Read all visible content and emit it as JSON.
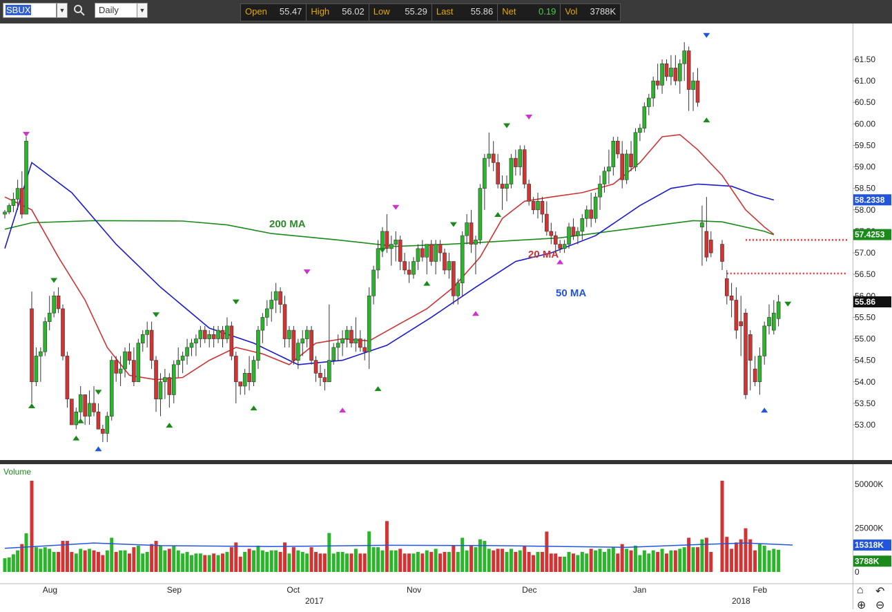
{
  "toolbar": {
    "symbol": "SBUX",
    "period": "Daily",
    "quote": {
      "open_label": "Open",
      "open": "55.47",
      "high_label": "High",
      "high": "56.02",
      "low_label": "Low",
      "low": "55.29",
      "last_label": "Last",
      "last": "55.86",
      "net_label": "Net",
      "net": "0.19",
      "vol_label": "Vol",
      "vol": "3788K"
    },
    "icons": [
      "search-icon",
      "dropdown-arrow-icon"
    ]
  },
  "chart_data": {
    "type": "candlestick",
    "price_axis": {
      "ticks": [
        "53.00",
        "53.50",
        "54.00",
        "54.50",
        "55.00",
        "55.50",
        "56.00",
        "56.50",
        "57.00",
        "57.50",
        "58.00",
        "58.50",
        "59.00",
        "59.50",
        "60.00",
        "60.50",
        "61.00",
        "61.50"
      ],
      "range": [
        52.4,
        62.1
      ],
      "labels": {
        "ma50": "58.2338",
        "ma200": "57.4253",
        "last": "55.86"
      }
    },
    "time_axis": {
      "months": [
        "Aug",
        "Sep",
        "Oct",
        "Nov",
        "Dec",
        "Jan",
        "Feb"
      ],
      "years": [
        "2017",
        "2018"
      ]
    },
    "ma_labels": {
      "ma20": "20 MA",
      "ma50": "50 MA",
      "ma200": "200 MA"
    },
    "colors": {
      "up": "#2bb52b",
      "down": "#d23333",
      "ma20": "#cc3333",
      "ma50": "#1a1acc",
      "ma200": "#1a8a1a",
      "vol_avg": "#2255dd",
      "level_line": "#ff3333"
    },
    "candles": [
      [
        57.9,
        58.0,
        57.8,
        57.95
      ],
      [
        57.95,
        58.15,
        57.9,
        58.1
      ],
      [
        58.1,
        58.4,
        57.95,
        58.25
      ],
      [
        58.25,
        58.7,
        58.0,
        58.5
      ],
      [
        58.5,
        58.9,
        57.8,
        57.9
      ],
      [
        57.9,
        59.7,
        57.9,
        59.6
      ],
      [
        55.7,
        56.1,
        53.5,
        54.0
      ],
      [
        54.0,
        54.8,
        53.9,
        54.6
      ],
      [
        54.6,
        54.8,
        54.0,
        54.7
      ],
      [
        54.7,
        55.5,
        54.6,
        55.4
      ],
      [
        55.4,
        56.0,
        55.2,
        55.6
      ],
      [
        55.6,
        56.1,
        55.5,
        56.0
      ],
      [
        56.0,
        56.2,
        55.6,
        55.7
      ],
      [
        55.7,
        55.8,
        54.5,
        54.6
      ],
      [
        54.6,
        54.7,
        53.4,
        53.6
      ],
      [
        53.6,
        53.6,
        53.0,
        53.0
      ],
      [
        53.0,
        53.4,
        52.9,
        53.3
      ],
      [
        53.3,
        53.9,
        53.1,
        53.7
      ],
      [
        53.7,
        53.7,
        53.0,
        53.2
      ],
      [
        53.2,
        53.8,
        53.0,
        53.5
      ],
      [
        53.5,
        53.9,
        53.2,
        53.3
      ],
      [
        53.3,
        53.5,
        52.9,
        52.9
      ],
      [
        52.9,
        53.0,
        52.6,
        52.8
      ],
      [
        52.8,
        53.3,
        52.6,
        53.2
      ],
      [
        53.2,
        54.6,
        53.1,
        54.5
      ],
      [
        54.5,
        54.6,
        54.0,
        54.2
      ],
      [
        54.2,
        54.6,
        53.9,
        54.3
      ],
      [
        54.3,
        54.8,
        54.1,
        54.7
      ],
      [
        54.7,
        54.9,
        54.4,
        54.5
      ],
      [
        54.5,
        54.8,
        53.9,
        54.0
      ],
      [
        54.0,
        55.0,
        54.0,
        54.9
      ],
      [
        54.9,
        55.2,
        54.7,
        55.1
      ],
      [
        55.1,
        55.4,
        54.8,
        55.2
      ],
      [
        55.2,
        55.4,
        54.3,
        54.5
      ],
      [
        54.5,
        54.6,
        53.3,
        53.6
      ],
      [
        53.6,
        54.2,
        53.2,
        54.0
      ],
      [
        54.0,
        54.3,
        53.6,
        54.1
      ],
      [
        54.1,
        54.2,
        53.4,
        53.7
      ],
      [
        53.7,
        54.5,
        53.5,
        54.4
      ],
      [
        54.4,
        54.8,
        54.1,
        54.5
      ],
      [
        54.5,
        54.7,
        54.2,
        54.6
      ],
      [
        54.6,
        55.0,
        54.4,
        54.8
      ],
      [
        54.8,
        55.0,
        54.6,
        54.9
      ],
      [
        54.9,
        55.1,
        54.6,
        55.0
      ],
      [
        55.0,
        55.3,
        54.8,
        55.2
      ],
      [
        55.2,
        55.3,
        54.9,
        55.0
      ],
      [
        55.0,
        55.2,
        54.8,
        55.1
      ],
      [
        55.1,
        55.3,
        54.8,
        55.0
      ],
      [
        55.0,
        55.3,
        54.9,
        55.2
      ],
      [
        55.2,
        55.3,
        54.8,
        55.0
      ],
      [
        55.0,
        55.5,
        54.9,
        55.3
      ],
      [
        55.3,
        55.4,
        54.5,
        54.6
      ],
      [
        54.6,
        54.7,
        53.5,
        54.0
      ],
      [
        54.0,
        54.0,
        53.7,
        53.9
      ],
      [
        53.9,
        54.3,
        53.7,
        54.2
      ],
      [
        54.2,
        54.6,
        53.8,
        54.0
      ],
      [
        54.0,
        54.6,
        53.9,
        54.5
      ],
      [
        54.5,
        55.3,
        54.3,
        55.2
      ],
      [
        55.2,
        55.6,
        54.9,
        55.5
      ],
      [
        55.5,
        55.9,
        55.3,
        55.7
      ],
      [
        55.7,
        56.1,
        55.4,
        55.9
      ],
      [
        55.9,
        56.3,
        55.6,
        56.1
      ],
      [
        56.1,
        56.2,
        55.6,
        55.8
      ],
      [
        55.8,
        56.0,
        54.8,
        55.0
      ],
      [
        55.0,
        55.3,
        54.8,
        55.2
      ],
      [
        55.2,
        55.3,
        54.4,
        54.5
      ],
      [
        54.5,
        55.0,
        54.3,
        54.9
      ],
      [
        54.9,
        55.2,
        54.6,
        55.0
      ],
      [
        55.0,
        55.3,
        54.8,
        55.2
      ],
      [
        55.2,
        55.3,
        54.4,
        54.5
      ],
      [
        54.5,
        54.6,
        54.0,
        54.2
      ],
      [
        54.2,
        54.4,
        53.9,
        54.1
      ],
      [
        54.1,
        54.3,
        53.8,
        54.0
      ],
      [
        54.0,
        55.8,
        54.0,
        54.5
      ],
      [
        54.5,
        54.9,
        54.4,
        54.8
      ],
      [
        54.8,
        55.1,
        54.5,
        54.9
      ],
      [
        54.9,
        55.2,
        54.6,
        55.0
      ],
      [
        55.0,
        55.3,
        54.8,
        55.2
      ],
      [
        55.2,
        55.3,
        54.8,
        54.9
      ],
      [
        54.9,
        55.5,
        54.7,
        55.0
      ],
      [
        55.0,
        55.2,
        54.7,
        54.8
      ],
      [
        54.8,
        55.0,
        54.5,
        54.7
      ],
      [
        54.7,
        56.2,
        54.3,
        56.0
      ],
      [
        56.0,
        56.7,
        55.8,
        56.6
      ],
      [
        56.6,
        57.3,
        56.4,
        57.1
      ],
      [
        57.1,
        57.6,
        56.9,
        57.5
      ],
      [
        57.5,
        57.9,
        57.0,
        57.1
      ],
      [
        57.1,
        57.4,
        56.7,
        57.2
      ],
      [
        57.2,
        57.5,
        56.8,
        57.3
      ],
      [
        57.3,
        57.4,
        56.6,
        56.8
      ],
      [
        56.8,
        57.0,
        56.5,
        56.6
      ],
      [
        56.6,
        56.8,
        56.3,
        56.5
      ],
      [
        56.5,
        56.9,
        56.4,
        56.8
      ],
      [
        56.8,
        57.2,
        56.6,
        57.1
      ],
      [
        57.1,
        57.3,
        56.8,
        56.9
      ],
      [
        56.9,
        57.2,
        56.5,
        57.2
      ],
      [
        57.2,
        57.3,
        56.7,
        56.8
      ],
      [
        56.8,
        57.3,
        56.5,
        57.2
      ],
      [
        57.2,
        57.3,
        56.8,
        57.0
      ],
      [
        57.0,
        57.1,
        56.5,
        56.6
      ],
      [
        56.6,
        57.0,
        56.4,
        56.8
      ],
      [
        56.8,
        56.8,
        55.8,
        56.0
      ],
      [
        56.0,
        56.4,
        55.8,
        56.3
      ],
      [
        56.3,
        57.5,
        56.0,
        57.4
      ],
      [
        57.4,
        57.9,
        57.2,
        57.7
      ],
      [
        57.7,
        58.0,
        57.0,
        57.2
      ],
      [
        57.2,
        57.4,
        56.5,
        57.3
      ],
      [
        57.3,
        58.6,
        57.2,
        58.5
      ],
      [
        58.5,
        59.3,
        58.0,
        59.2
      ],
      [
        59.2,
        59.8,
        59.0,
        59.3
      ],
      [
        59.3,
        59.6,
        58.9,
        59.1
      ],
      [
        59.1,
        59.3,
        58.5,
        58.6
      ],
      [
        58.6,
        58.8,
        58.0,
        58.5
      ],
      [
        58.5,
        58.8,
        58.2,
        58.6
      ],
      [
        58.6,
        59.3,
        58.5,
        59.2
      ],
      [
        59.2,
        59.4,
        58.8,
        59.0
      ],
      [
        59.0,
        59.5,
        58.8,
        59.4
      ],
      [
        59.4,
        59.5,
        58.5,
        58.6
      ],
      [
        58.6,
        58.7,
        58.1,
        58.2
      ],
      [
        58.2,
        58.3,
        57.9,
        58.0
      ],
      [
        58.0,
        58.4,
        57.8,
        58.2
      ],
      [
        58.2,
        58.3,
        57.7,
        57.9
      ],
      [
        57.9,
        58.2,
        57.4,
        57.5
      ],
      [
        57.5,
        57.7,
        57.2,
        57.4
      ],
      [
        57.4,
        57.5,
        57.0,
        57.2
      ],
      [
        57.2,
        57.3,
        57.0,
        57.1
      ],
      [
        57.1,
        57.3,
        57.0,
        57.2
      ],
      [
        57.2,
        57.7,
        57.1,
        57.6
      ],
      [
        57.6,
        57.8,
        57.3,
        57.4
      ],
      [
        57.4,
        57.6,
        57.2,
        57.5
      ],
      [
        57.5,
        57.9,
        57.3,
        57.8
      ],
      [
        57.8,
        58.1,
        57.6,
        58.0
      ],
      [
        58.0,
        58.4,
        57.6,
        57.8
      ],
      [
        57.8,
        58.4,
        57.7,
        58.3
      ],
      [
        58.3,
        58.8,
        58.0,
        58.6
      ],
      [
        58.6,
        59.0,
        58.4,
        58.9
      ],
      [
        58.9,
        59.4,
        58.6,
        59.0
      ],
      [
        59.0,
        59.7,
        58.8,
        59.6
      ],
      [
        59.6,
        59.7,
        59.2,
        59.3
      ],
      [
        59.3,
        59.6,
        58.5,
        58.7
      ],
      [
        58.7,
        59.4,
        58.6,
        59.3
      ],
      [
        59.3,
        59.6,
        58.9,
        59.0
      ],
      [
        59.0,
        59.9,
        58.9,
        59.8
      ],
      [
        59.8,
        60.0,
        59.6,
        59.9
      ],
      [
        59.9,
        60.5,
        59.8,
        60.4
      ],
      [
        60.4,
        60.7,
        60.2,
        60.6
      ],
      [
        60.6,
        61.1,
        60.4,
        61.0
      ],
      [
        61.0,
        61.4,
        60.8,
        60.9
      ],
      [
        60.9,
        61.5,
        60.7,
        61.4
      ],
      [
        61.4,
        61.5,
        61.0,
        61.1
      ],
      [
        61.1,
        61.6,
        60.9,
        61.3
      ],
      [
        61.3,
        61.6,
        60.9,
        61.0
      ],
      [
        61.0,
        61.5,
        60.7,
        61.4
      ],
      [
        61.4,
        61.9,
        61.0,
        61.7
      ],
      [
        61.7,
        61.8,
        60.3,
        60.8
      ],
      [
        60.8,
        61.2,
        60.3,
        61.0
      ],
      [
        61.0,
        61.3,
        60.4,
        60.5
      ],
      [
        57.6,
        58.1,
        56.7,
        57.7
      ],
      [
        57.5,
        58.3,
        56.8,
        56.9
      ],
      [
        57.3,
        57.5,
        56.9,
        57.0
      ],
      [
        57.2,
        57.3,
        56.6,
        56.8
      ],
      [
        56.4,
        56.6,
        55.8,
        56.0
      ],
      [
        56.0,
        56.3,
        55.5,
        55.9
      ],
      [
        55.9,
        56.2,
        55.0,
        55.2
      ],
      [
        55.4,
        56.0,
        54.6,
        55.3
      ],
      [
        55.6,
        55.7,
        53.6,
        53.7
      ],
      [
        55.1,
        55.2,
        53.8,
        54.5
      ],
      [
        54.3,
        54.6,
        53.9,
        54.0
      ],
      [
        54.0,
        54.8,
        53.7,
        54.6
      ],
      [
        54.6,
        55.4,
        54.4,
        55.3
      ],
      [
        55.3,
        55.8,
        55.1,
        55.5
      ],
      [
        55.2,
        55.9,
        55.1,
        55.6
      ],
      [
        55.47,
        56.02,
        55.29,
        55.86
      ]
    ],
    "volume": {
      "axis_ticks": [
        "50000K",
        "25000K",
        "0"
      ],
      "labels": {
        "avg": "15318K",
        "last": "3788K"
      },
      "title": "Volume"
    }
  }
}
